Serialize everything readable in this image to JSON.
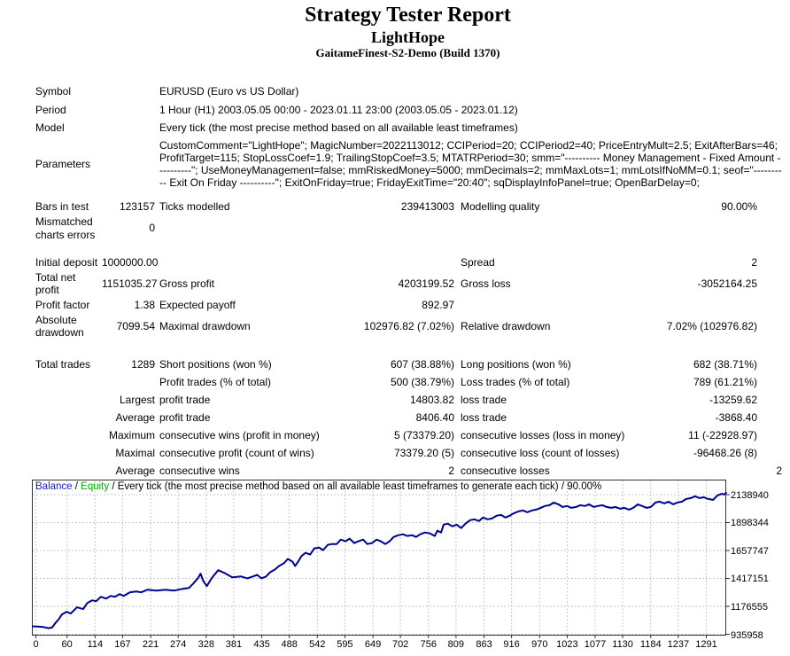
{
  "header": {
    "title": "Strategy Tester Report",
    "ea_name": "LightHope",
    "server": "GaitameFinest-S2-Demo (Build 1370)"
  },
  "info_rows": [
    {
      "label": "Symbol",
      "value": "EURUSD (Euro vs US Dollar)"
    },
    {
      "label": "Period",
      "value": "1 Hour (H1) 2003.05.05 00:00 - 2023.01.11 23:00 (2003.05.05 - 2023.01.12)"
    },
    {
      "label": "Model",
      "value": "Every tick (the most precise method based on all available least timeframes)"
    },
    {
      "label": "Parameters",
      "value": "CustomComment=\"LightHope\"; MagicNumber=2022113012; CCIPeriod=20; CCIPeriod2=40; PriceEntryMult=2.5; ExitAfterBars=46; ProfitTarget=115; StopLossCoef=1.9; TrailingStopCoef=3.5; MTATRPeriod=30; smm=\"---------- Money Management - Fixed Amount ----------\"; UseMoneyManagement=false; mmRiskedMoney=5000; mmDecimals=2; mmMaxLots=1; mmLotsIfNoMM=0.1; seof=\"---------- Exit On Friday ----------\"; ExitOnFriday=true; FridayExitTime=\"20:40\"; sqDisplayInfoPanel=true; OpenBarDelay=0;"
    }
  ],
  "stats": {
    "sections": [
      {
        "rows": [
          [
            "Bars in test",
            "123157",
            "Ticks modelled",
            "239413003",
            "Modelling quality",
            "90.00%"
          ],
          [
            "Mismatched charts errors",
            "0",
            "",
            "",
            "",
            ""
          ]
        ]
      },
      {
        "rows": [
          [
            "Initial deposit",
            "1000000.00",
            "",
            "",
            "Spread",
            "2"
          ],
          [
            "Total net profit",
            "1151035.27",
            "Gross profit",
            "4203199.52",
            "Gross loss",
            "-3052164.25"
          ],
          [
            "Profit factor",
            "1.38",
            "Expected payoff",
            "892.97",
            "",
            ""
          ],
          [
            "Absolute drawdown",
            "7099.54",
            "Maximal drawdown",
            "102976.82 (7.02%)",
            "Relative drawdown",
            "7.02% (102976.82)"
          ]
        ]
      },
      {
        "rows": [
          [
            "Total trades",
            "1289",
            "Short positions (won %)",
            "607 (38.88%)",
            "Long positions (won %)",
            "682 (38.71%)"
          ],
          [
            "",
            "",
            "Profit trades (% of total)",
            "500 (38.79%)",
            "Loss trades (% of total)",
            "789 (61.21%)"
          ],
          [
            "",
            "Largest",
            "profit trade",
            "14803.82",
            "loss trade",
            "-13259.62"
          ],
          [
            "",
            "Average",
            "profit trade",
            "8406.40",
            "loss trade",
            "-3868.40"
          ],
          [
            "",
            "Maximum",
            "consecutive wins (profit in money)",
            "5 (73379.20)",
            "consecutive losses (loss in money)",
            "11 (-22928.97)"
          ],
          [
            "",
            "Maximal",
            "consecutive profit (count of wins)",
            "73379.20 (5)",
            "consecutive loss (count of losses)",
            "-96468.26 (8)"
          ],
          [
            "",
            "Average",
            "consecutive wins",
            "2",
            "consecutive losses",
            "2"
          ]
        ]
      }
    ]
  },
  "chart": {
    "legend_balance": "Balance",
    "legend_sep": " / ",
    "legend_equity": "Equity",
    "legend_rest": " / Every tick (the most precise method based on all available least timeframes to generate each tick) / 90.00%",
    "colors": {
      "balance_label": "#1d1dce",
      "equity_label": "#00b400",
      "curve": "#000090",
      "grid": "#c8c8c8",
      "border": "#333333"
    }
  },
  "chart_data": {
    "type": "line",
    "title": "Balance / Equity curve",
    "xlabel": "",
    "ylabel": "",
    "grid": true,
    "legend_position": "top-left",
    "legend": [
      "Balance",
      "Equity"
    ],
    "x_range": [
      0,
      1330
    ],
    "y_axis_min": 935958,
    "y_axis_max": 2138940,
    "x_ticks": [
      0,
      60,
      114,
      167,
      221,
      274,
      328,
      381,
      435,
      488,
      542,
      595,
      649,
      702,
      756,
      809,
      863,
      916,
      970,
      1023,
      1077,
      1130,
      1184,
      1237,
      1291
    ],
    "y_ticks_top_to_bottom": [
      2138940,
      1898344,
      1657747,
      1417151,
      1176555,
      935958
    ],
    "series": [
      {
        "name": "Balance",
        "points": [
          [
            0,
            1000000
          ],
          [
            15,
            995000
          ],
          [
            25,
            985000
          ],
          [
            32,
            990000
          ],
          [
            38,
            1027000
          ],
          [
            45,
            1062000
          ],
          [
            51,
            1103000
          ],
          [
            60,
            1126000
          ],
          [
            68,
            1111000
          ],
          [
            80,
            1164000
          ],
          [
            92,
            1149000
          ],
          [
            100,
            1202000
          ],
          [
            109,
            1225000
          ],
          [
            117,
            1217000
          ],
          [
            126,
            1255000
          ],
          [
            136,
            1240000
          ],
          [
            145,
            1263000
          ],
          [
            153,
            1255000
          ],
          [
            162,
            1278000
          ],
          [
            170,
            1263000
          ],
          [
            182,
            1294000
          ],
          [
            194,
            1301000
          ],
          [
            204,
            1294000
          ],
          [
            216,
            1316000
          ],
          [
            233,
            1309000
          ],
          [
            250,
            1316000
          ],
          [
            267,
            1309000
          ],
          [
            284,
            1324000
          ],
          [
            296,
            1332000
          ],
          [
            304,
            1370000
          ],
          [
            313,
            1416000
          ],
          [
            318,
            1454000
          ],
          [
            323,
            1393000
          ],
          [
            330,
            1347000
          ],
          [
            340,
            1420000
          ],
          [
            352,
            1484000
          ],
          [
            364,
            1461000
          ],
          [
            379,
            1423000
          ],
          [
            396,
            1430000
          ],
          [
            408,
            1414000
          ],
          [
            418,
            1429000
          ],
          [
            427,
            1444000
          ],
          [
            435,
            1414000
          ],
          [
            444,
            1429000
          ],
          [
            452,
            1467000
          ],
          [
            461,
            1490000
          ],
          [
            469,
            1520000
          ],
          [
            478,
            1543000
          ],
          [
            486,
            1581000
          ],
          [
            495,
            1558000
          ],
          [
            500,
            1520000
          ],
          [
            507,
            1566000
          ],
          [
            512,
            1604000
          ],
          [
            520,
            1634000
          ],
          [
            529,
            1619000
          ],
          [
            537,
            1672000
          ],
          [
            546,
            1680000
          ],
          [
            554,
            1657000
          ],
          [
            563,
            1703000
          ],
          [
            571,
            1710000
          ],
          [
            580,
            1710000
          ],
          [
            588,
            1748000
          ],
          [
            597,
            1733000
          ],
          [
            605,
            1756000
          ],
          [
            614,
            1718000
          ],
          [
            622,
            1733000
          ],
          [
            631,
            1748000
          ],
          [
            639,
            1710000
          ],
          [
            648,
            1718000
          ],
          [
            657,
            1748000
          ],
          [
            665,
            1733000
          ],
          [
            674,
            1710000
          ],
          [
            682,
            1733000
          ],
          [
            690,
            1771000
          ],
          [
            699,
            1786000
          ],
          [
            708,
            1794000
          ],
          [
            716,
            1779000
          ],
          [
            725,
            1786000
          ],
          [
            733,
            1771000
          ],
          [
            741,
            1794000
          ],
          [
            750,
            1809000
          ],
          [
            760,
            1801000
          ],
          [
            769,
            1779000
          ],
          [
            774,
            1824000
          ],
          [
            781,
            1809000
          ],
          [
            786,
            1877000
          ],
          [
            794,
            1885000
          ],
          [
            803,
            1862000
          ],
          [
            811,
            1877000
          ],
          [
            820,
            1847000
          ],
          [
            828,
            1885000
          ],
          [
            837,
            1915000
          ],
          [
            845,
            1923000
          ],
          [
            854,
            1908000
          ],
          [
            862,
            1938000
          ],
          [
            871,
            1923000
          ],
          [
            879,
            1930000
          ],
          [
            888,
            1953000
          ],
          [
            896,
            1961000
          ],
          [
            905,
            1938000
          ],
          [
            913,
            1953000
          ],
          [
            922,
            1976000
          ],
          [
            930,
            1991000
          ],
          [
            939,
            1999000
          ],
          [
            947,
            1984000
          ],
          [
            956,
            1999000
          ],
          [
            964,
            2006000
          ],
          [
            973,
            2021000
          ],
          [
            981,
            2037000
          ],
          [
            990,
            2044000
          ],
          [
            998,
            2067000
          ],
          [
            1007,
            2052000
          ],
          [
            1015,
            2029000
          ],
          [
            1024,
            2037000
          ],
          [
            1032,
            2021000
          ],
          [
            1041,
            2029000
          ],
          [
            1049,
            2044000
          ],
          [
            1058,
            2037000
          ],
          [
            1066,
            2052000
          ],
          [
            1075,
            2029000
          ],
          [
            1083,
            2037000
          ],
          [
            1092,
            2044000
          ],
          [
            1100,
            2029000
          ],
          [
            1109,
            2021000
          ],
          [
            1117,
            2029000
          ],
          [
            1126,
            2014000
          ],
          [
            1134,
            2021000
          ],
          [
            1143,
            2006000
          ],
          [
            1151,
            2021000
          ],
          [
            1160,
            2052000
          ],
          [
            1168,
            2037000
          ],
          [
            1177,
            2021000
          ],
          [
            1185,
            2029000
          ],
          [
            1194,
            2067000
          ],
          [
            1202,
            2075000
          ],
          [
            1211,
            2060000
          ],
          [
            1219,
            2075000
          ],
          [
            1228,
            2052000
          ],
          [
            1236,
            2067000
          ],
          [
            1245,
            2075000
          ],
          [
            1253,
            2098000
          ],
          [
            1262,
            2105000
          ],
          [
            1270,
            2121000
          ],
          [
            1279,
            2105000
          ],
          [
            1287,
            2113000
          ],
          [
            1296,
            2098000
          ],
          [
            1305,
            2090000
          ],
          [
            1313,
            2128000
          ],
          [
            1322,
            2143000
          ],
          [
            1326,
            2136000
          ],
          [
            1330,
            2151035
          ]
        ]
      }
    ]
  }
}
